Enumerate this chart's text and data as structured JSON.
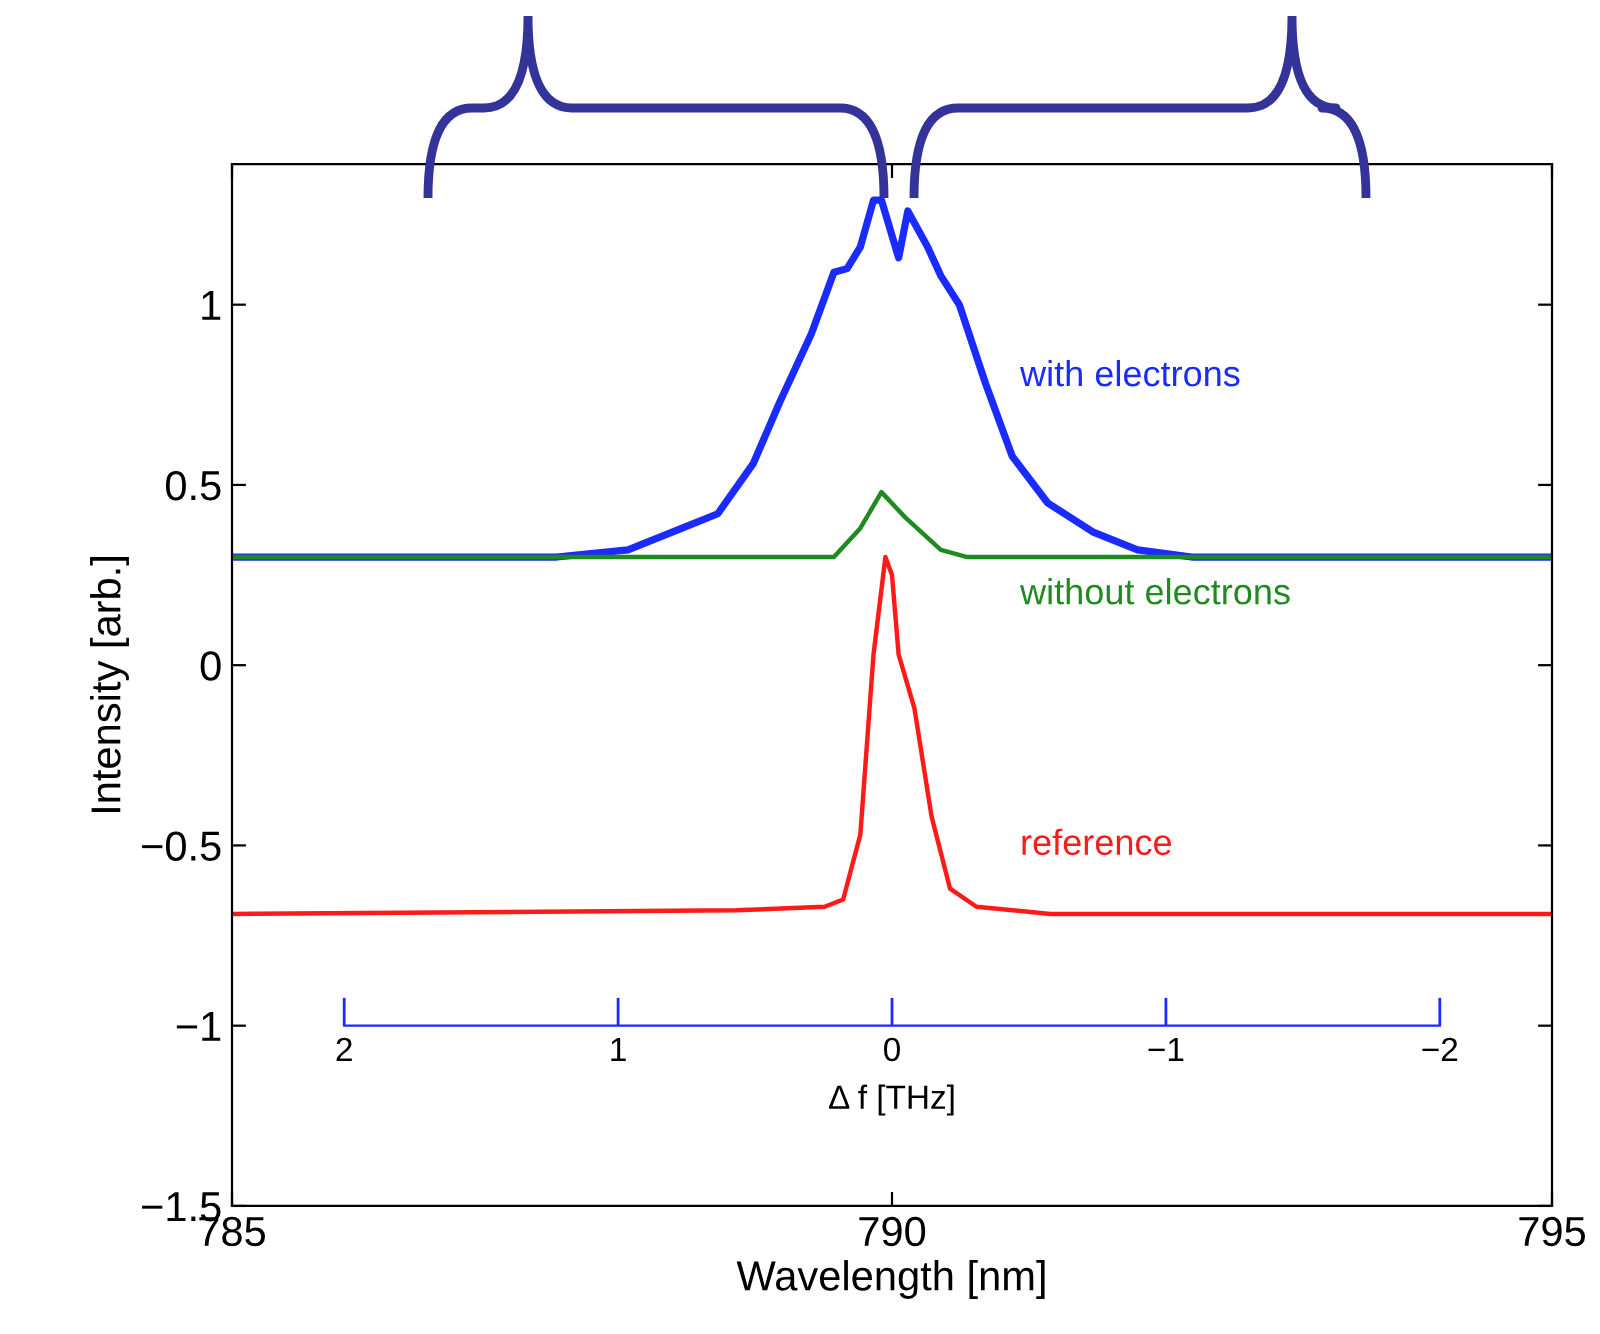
{
  "chart_data": {
    "type": "line",
    "xlabel": "Wavelength [nm]",
    "ylabel": "Intensity [arb.]",
    "x2label": "Δ f [THz]",
    "xlim": [
      785,
      795
    ],
    "xticks": [
      785,
      790,
      795
    ],
    "ylim": [
      -1.5,
      1.39
    ],
    "yticks": [
      {
        "value": -1.5,
        "label": "−1.5"
      },
      {
        "value": -1,
        "label": "−1"
      },
      {
        "value": -0.5,
        "label": "−0.5"
      },
      0,
      0.5,
      1
    ],
    "x2lim": [
      2,
      -2
    ],
    "x2ticks": [
      2,
      1,
      0,
      {
        "value": -1,
        "label": "−1"
      },
      {
        "value": -2,
        "label": "−2"
      }
    ],
    "grid": false,
    "legend": false,
    "marker": "none",
    "line_style": "solid",
    "series": [
      {
        "name": "with electrons",
        "color": "#1a2bff",
        "x": [
          785,
          787.46,
          788.0,
          788.41,
          788.68,
          788.95,
          789.15,
          789.39,
          789.56,
          789.66,
          789.76,
          789.86,
          789.92,
          790.05,
          790.12,
          790.27,
          790.37,
          790.51,
          790.71,
          790.91,
          791.18,
          791.52,
          791.86,
          792.27,
          795
        ],
        "values": [
          0.3,
          0.3,
          0.32,
          0.38,
          0.42,
          0.56,
          0.73,
          0.92,
          1.09,
          1.1,
          1.16,
          1.29,
          1.29,
          1.13,
          1.26,
          1.16,
          1.08,
          1.0,
          0.78,
          0.58,
          0.45,
          0.37,
          0.32,
          0.3,
          0.3
        ]
      },
      {
        "name": "without electrons",
        "color": "#1f8a1f",
        "x": [
          785,
          789.56,
          789.76,
          789.92,
          790.1,
          790.37,
          790.57,
          795
        ],
        "values": [
          0.3,
          0.3,
          0.38,
          0.48,
          0.41,
          0.32,
          0.3,
          0.3
        ]
      },
      {
        "name": "reference",
        "color": "#ff1a1a",
        "x": [
          785,
          788.82,
          789.49,
          789.63,
          789.76,
          789.86,
          789.95,
          790.0,
          790.05,
          790.17,
          790.3,
          790.44,
          790.64,
          791.2,
          795
        ],
        "values": [
          -0.69,
          -0.68,
          -0.67,
          -0.65,
          -0.47,
          0.03,
          0.3,
          0.25,
          0.03,
          -0.12,
          -0.42,
          -0.62,
          -0.67,
          -0.69,
          -0.69
        ]
      }
    ]
  }
}
